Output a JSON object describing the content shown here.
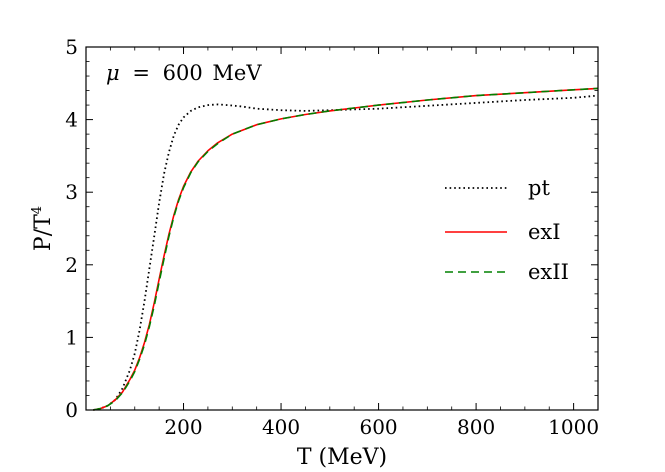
{
  "chart_data": {
    "type": "line",
    "title": "",
    "annotation": {
      "mu_symbol": "μ",
      "equals": "=",
      "value": "600",
      "unit": "MeV"
    },
    "xlabel": "T (MeV)",
    "ylabel": {
      "main": "P/T",
      "sup": "4"
    },
    "xlim": [
      0,
      1050
    ],
    "ylim": [
      0,
      5
    ],
    "xticks": [
      200,
      400,
      600,
      800,
      1000
    ],
    "yticks": [
      0,
      1,
      2,
      3,
      4,
      5
    ],
    "grid": false,
    "legend_position": "center-right",
    "series": [
      {
        "name": "pt",
        "color": "#000000",
        "style": "dotted",
        "x": [
          15,
          30,
          45,
          60,
          75,
          90,
          100,
          110,
          120,
          130,
          140,
          150,
          160,
          170,
          180,
          190,
          200,
          215,
          230,
          250,
          270,
          290,
          320,
          350,
          400,
          450,
          500,
          550,
          600,
          700,
          800,
          900,
          1000,
          1050
        ],
        "y": [
          0.0,
          0.02,
          0.06,
          0.14,
          0.3,
          0.55,
          0.78,
          1.1,
          1.5,
          1.95,
          2.4,
          2.85,
          3.25,
          3.55,
          3.78,
          3.93,
          4.03,
          4.12,
          4.17,
          4.2,
          4.21,
          4.2,
          4.18,
          4.15,
          4.13,
          4.12,
          4.13,
          4.14,
          4.15,
          4.19,
          4.23,
          4.27,
          4.3,
          4.33
        ]
      },
      {
        "name": "exI",
        "color": "#ff0000",
        "style": "solid",
        "x": [
          15,
          30,
          45,
          60,
          75,
          90,
          100,
          110,
          120,
          130,
          140,
          150,
          160,
          170,
          180,
          190,
          200,
          215,
          230,
          250,
          270,
          300,
          350,
          400,
          450,
          500,
          550,
          600,
          700,
          800,
          900,
          1000,
          1050
        ],
        "y": [
          0.0,
          0.02,
          0.06,
          0.14,
          0.25,
          0.42,
          0.55,
          0.72,
          0.93,
          1.18,
          1.48,
          1.8,
          2.12,
          2.42,
          2.68,
          2.9,
          3.08,
          3.28,
          3.43,
          3.57,
          3.68,
          3.8,
          3.93,
          4.01,
          4.07,
          4.12,
          4.16,
          4.2,
          4.27,
          4.33,
          4.37,
          4.41,
          4.43
        ]
      },
      {
        "name": "exII",
        "color": "#008000",
        "style": "dashed",
        "x": [
          15,
          30,
          45,
          60,
          75,
          90,
          100,
          110,
          120,
          130,
          140,
          150,
          160,
          170,
          180,
          190,
          200,
          215,
          230,
          250,
          270,
          300,
          350,
          400,
          450,
          500,
          550,
          600,
          700,
          800,
          900,
          1000,
          1050
        ],
        "y": [
          0.0,
          0.02,
          0.06,
          0.13,
          0.24,
          0.4,
          0.53,
          0.7,
          0.9,
          1.15,
          1.44,
          1.76,
          2.08,
          2.39,
          2.66,
          2.88,
          3.06,
          3.27,
          3.42,
          3.56,
          3.67,
          3.8,
          3.93,
          4.01,
          4.07,
          4.12,
          4.16,
          4.2,
          4.27,
          4.33,
          4.37,
          4.41,
          4.43
        ]
      }
    ]
  }
}
